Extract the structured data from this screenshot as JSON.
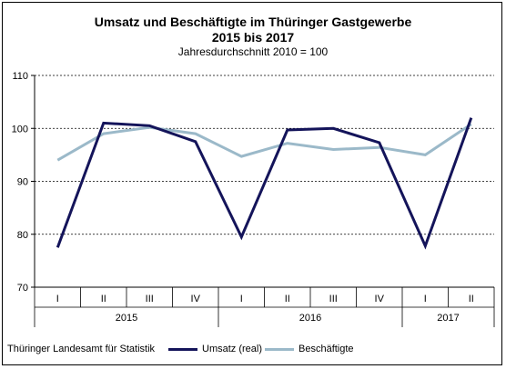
{
  "chart_data": {
    "type": "line",
    "title_line1": "Umsatz und Beschäftigte im Thüringer Gastgewerbe",
    "title_line2": "2015 bis 2017",
    "subtitle": "Jahresdurchschnitt 2010 = 100",
    "categories": [
      "I",
      "II",
      "III",
      "IV",
      "I",
      "II",
      "III",
      "IV",
      "I",
      "II"
    ],
    "year_groups": [
      {
        "label": "2015",
        "count": 4
      },
      {
        "label": "2016",
        "count": 4
      },
      {
        "label": "2017",
        "count": 2
      }
    ],
    "y_ticks": [
      70,
      80,
      90,
      100,
      110
    ],
    "ylim": [
      70,
      110
    ],
    "grid": "horizontal dashed",
    "series": [
      {
        "name": "Umsatz (real)",
        "color": "#14145a",
        "values": [
          77.5,
          101.0,
          100.5,
          97.5,
          79.5,
          99.7,
          100.0,
          97.3,
          77.8,
          102.0
        ]
      },
      {
        "name": "Beschäftigte",
        "color": "#9bb9c9",
        "values": [
          94.0,
          99.0,
          100.2,
          99.0,
          94.7,
          97.2,
          96.0,
          96.4,
          95.0,
          100.8
        ]
      }
    ],
    "legend_position": "bottom-right"
  },
  "source": "Thüringer Landesamt für Statistik"
}
